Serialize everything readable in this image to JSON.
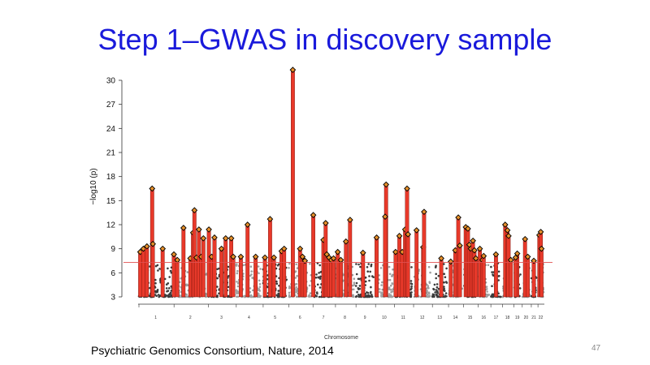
{
  "slide": {
    "title": "Step 1–GWAS in discovery sample",
    "citation": "Psychiatric Genomics Consortium, Nature, 2014",
    "page_number": "47"
  },
  "colors": {
    "title": "#1a1adb",
    "odd_chromosome": "#3c3c3c",
    "even_chromosome": "#a0a0a0",
    "significant": "#e8392a",
    "lead_marker": "#e8902a",
    "threshold_line": "#e05050"
  },
  "chart_data": {
    "type": "scatter",
    "subtype": "manhattan",
    "title": "",
    "xlabel": "Chromosome",
    "ylabel": "−log10 (p)",
    "ylim": [
      3,
      31
    ],
    "yticks": [
      3,
      6,
      9,
      12,
      15,
      18,
      21,
      24,
      27,
      30
    ],
    "genome_wide_threshold": 7.3,
    "grid": false,
    "chromosomes": [
      {
        "label": "1",
        "peak": 16.5,
        "loci": [
          {
            "y": 8.6,
            "pos": 0.06
          },
          {
            "y": 9.0,
            "pos": 0.15
          },
          {
            "y": 9.3,
            "pos": 0.25
          },
          {
            "y": 16.5,
            "pos": 0.4
          },
          {
            "y": 9.6,
            "pos": 0.42
          },
          {
            "y": 9.0,
            "pos": 0.7
          }
        ]
      },
      {
        "label": "2",
        "peak": 13.8,
        "loci": [
          {
            "y": 8.3,
            "pos": 0.02
          },
          {
            "y": 7.6,
            "pos": 0.12
          },
          {
            "y": 11.6,
            "pos": 0.3
          },
          {
            "y": 7.8,
            "pos": 0.5
          },
          {
            "y": 11.0,
            "pos": 0.58
          },
          {
            "y": 13.8,
            "pos": 0.62
          },
          {
            "y": 7.9,
            "pos": 0.68
          },
          {
            "y": 11.4,
            "pos": 0.75
          },
          {
            "y": 8.0,
            "pos": 0.82
          },
          {
            "y": 10.3,
            "pos": 0.88
          }
        ]
      },
      {
        "label": "3",
        "peak": 11.4,
        "loci": [
          {
            "y": 11.4,
            "pos": 0.05
          },
          {
            "y": 8.0,
            "pos": 0.15
          },
          {
            "y": 10.4,
            "pos": 0.25
          },
          {
            "y": 9.0,
            "pos": 0.5
          },
          {
            "y": 10.3,
            "pos": 0.65
          },
          {
            "y": 10.3,
            "pos": 0.85
          },
          {
            "y": 8.0,
            "pos": 0.92
          }
        ]
      },
      {
        "label": "4",
        "peak": 12.0,
        "loci": [
          {
            "y": 8.0,
            "pos": 0.2
          },
          {
            "y": 12.0,
            "pos": 0.45
          },
          {
            "y": 8.0,
            "pos": 0.75
          }
        ]
      },
      {
        "label": "5",
        "peak": 12.7,
        "loci": [
          {
            "y": 7.9,
            "pos": 0.1
          },
          {
            "y": 12.7,
            "pos": 0.3
          },
          {
            "y": 7.9,
            "pos": 0.45
          },
          {
            "y": 8.7,
            "pos": 0.75
          },
          {
            "y": 9.0,
            "pos": 0.85
          }
        ]
      },
      {
        "label": "6",
        "peak": 31.3,
        "loci": [
          {
            "y": 31.3,
            "pos": 0.2
          },
          {
            "y": 9.0,
            "pos": 0.5
          },
          {
            "y": 8.0,
            "pos": 0.6
          },
          {
            "y": 7.5,
            "pos": 0.7
          }
        ]
      },
      {
        "label": "7",
        "peak": 13.2,
        "loci": [
          {
            "y": 13.2,
            "pos": 0.05
          },
          {
            "y": 10.1,
            "pos": 0.5
          },
          {
            "y": 12.2,
            "pos": 0.6
          },
          {
            "y": 8.3,
            "pos": 0.65
          },
          {
            "y": 7.9,
            "pos": 0.75
          },
          {
            "y": 7.6,
            "pos": 0.85
          },
          {
            "y": 7.8,
            "pos": 0.95
          }
        ]
      },
      {
        "label": "8",
        "peak": 12.6,
        "loci": [
          {
            "y": 8.6,
            "pos": 0.15
          },
          {
            "y": 7.6,
            "pos": 0.3
          },
          {
            "y": 9.9,
            "pos": 0.55
          },
          {
            "y": 12.6,
            "pos": 0.75
          }
        ]
      },
      {
        "label": "9",
        "peak": 8.5,
        "loci": [
          {
            "y": 8.5,
            "pos": 0.4
          }
        ]
      },
      {
        "label": "10",
        "peak": 17.0,
        "loci": [
          {
            "y": 10.4,
            "pos": 0.1
          },
          {
            "y": 17.0,
            "pos": 0.6
          },
          {
            "y": 13.0,
            "pos": 0.55
          }
        ]
      },
      {
        "label": "11",
        "peak": 16.5,
        "loci": [
          {
            "y": 8.6,
            "pos": 0.1
          },
          {
            "y": 10.6,
            "pos": 0.3
          },
          {
            "y": 8.6,
            "pos": 0.45
          },
          {
            "y": 11.4,
            "pos": 0.6
          },
          {
            "y": 16.5,
            "pos": 0.7
          },
          {
            "y": 10.8,
            "pos": 0.75
          }
        ]
      },
      {
        "label": "12",
        "peak": 13.6,
        "loci": [
          {
            "y": 11.3,
            "pos": 0.2
          },
          {
            "y": 9.2,
            "pos": 0.55
          },
          {
            "y": 13.6,
            "pos": 0.6
          }
        ]
      },
      {
        "label": "13",
        "peak": 7.8,
        "loci": [
          {
            "y": 7.8,
            "pos": 0.6
          }
        ]
      },
      {
        "label": "14",
        "peak": 12.9,
        "loci": [
          {
            "y": 7.4,
            "pos": 0.2
          },
          {
            "y": 8.8,
            "pos": 0.5
          },
          {
            "y": 12.9,
            "pos": 0.7
          },
          {
            "y": 9.4,
            "pos": 0.8
          }
        ]
      },
      {
        "label": "15",
        "peak": 11.7,
        "loci": [
          {
            "y": 11.7,
            "pos": 0.2
          },
          {
            "y": 11.5,
            "pos": 0.35
          },
          {
            "y": 9.5,
            "pos": 0.45
          },
          {
            "y": 9.0,
            "pos": 0.55
          },
          {
            "y": 10.0,
            "pos": 0.7
          },
          {
            "y": 8.8,
            "pos": 0.8
          },
          {
            "y": 7.8,
            "pos": 0.9
          }
        ]
      },
      {
        "label": "16",
        "peak": 9.0,
        "loci": [
          {
            "y": 9.0,
            "pos": 0.2
          },
          {
            "y": 7.6,
            "pos": 0.4
          },
          {
            "y": 8.1,
            "pos": 0.5
          }
        ]
      },
      {
        "label": "17",
        "peak": 8.3,
        "loci": [
          {
            "y": 8.3,
            "pos": 0.5
          }
        ]
      },
      {
        "label": "18",
        "peak": 12.0,
        "loci": [
          {
            "y": 12.0,
            "pos": 0.3
          },
          {
            "y": 11.3,
            "pos": 0.5
          },
          {
            "y": 10.6,
            "pos": 0.6
          },
          {
            "y": 7.6,
            "pos": 0.8
          }
        ]
      },
      {
        "label": "19",
        "peak": 8.4,
        "loci": [
          {
            "y": 8.4,
            "pos": 0.5
          },
          {
            "y": 7.9,
            "pos": 0.3
          }
        ]
      },
      {
        "label": "20",
        "peak": 10.2,
        "loci": [
          {
            "y": 10.2,
            "pos": 0.4
          },
          {
            "y": 8.0,
            "pos": 0.7
          }
        ]
      },
      {
        "label": "21",
        "peak": 7.5,
        "loci": [
          {
            "y": 7.5,
            "pos": 0.5
          }
        ]
      },
      {
        "label": "22",
        "peak": 11.1,
        "loci": [
          {
            "y": 10.7,
            "pos": 0.3
          },
          {
            "y": 11.1,
            "pos": 0.5
          },
          {
            "y": 9.0,
            "pos": 0.6
          }
        ]
      }
    ]
  }
}
